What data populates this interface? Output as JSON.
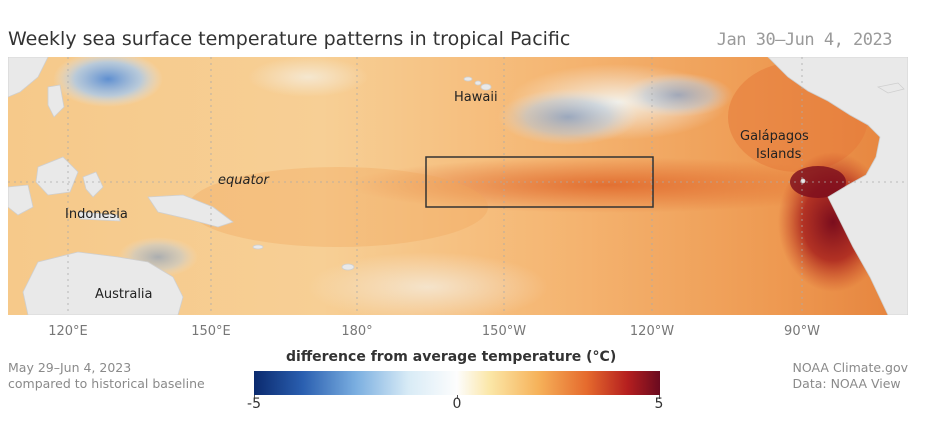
{
  "header": {
    "title": "Weekly sea surface temperature patterns in tropical Pacific",
    "date_range": "Jan 30–Jun 4, 2023"
  },
  "map": {
    "labels": {
      "hawaii": "Hawaii",
      "galapagos_line1": "Galápagos",
      "galapagos_line2": "Islands",
      "equator": "equator",
      "indonesia": "Indonesia",
      "australia": "Australia"
    },
    "longitude_ticks": [
      "120°E",
      "150°E",
      "180°",
      "150°W",
      "120°W",
      "90°W"
    ]
  },
  "legend": {
    "title": "difference from average temperature (°C)",
    "min": "-5",
    "mid": "0",
    "max": "5",
    "colors": {
      "cold": "#0b2a6e",
      "neutral": "#fdfdfd",
      "warm": "#f6b25a",
      "hot": "#6a0a1f"
    }
  },
  "footer": {
    "period": "May 29–Jun 4, 2023",
    "baseline": "compared to historical baseline",
    "source_org": "NOAA Climate.gov",
    "source_data": "Data: NOAA View"
  }
}
